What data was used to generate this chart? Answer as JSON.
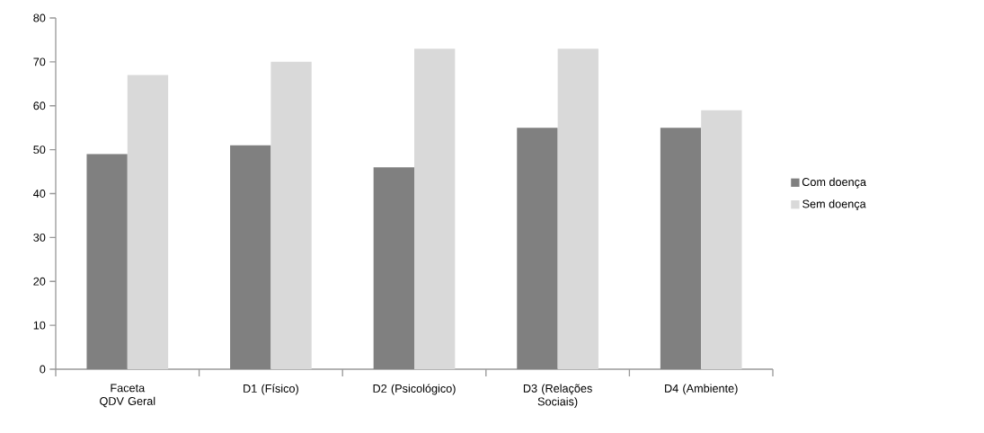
{
  "chart_data": {
    "type": "bar",
    "categories": [
      "Faceta QDV Geral",
      "D1 (Físico)",
      "D2 (Psicológico)",
      "D3 (Relações Sociais)",
      "D4 (Ambiente)"
    ],
    "series": [
      {
        "name": "Com doença",
        "color": "#808080",
        "values": [
          49,
          51,
          46,
          55,
          55
        ]
      },
      {
        "name": "Sem doença",
        "color": "#d9d9d9",
        "values": [
          67,
          70,
          73,
          73,
          59
        ]
      }
    ],
    "ylim": [
      0,
      80
    ],
    "yticks": [
      0,
      10,
      20,
      30,
      40,
      50,
      60,
      70,
      80
    ],
    "grid": false,
    "legend": "right"
  }
}
